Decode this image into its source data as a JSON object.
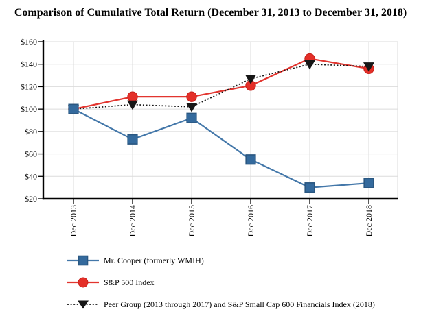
{
  "chart_data": {
    "type": "line",
    "title": "Comparison of Cumulative Total Return (December 31, 2013 to December 31, 2018)",
    "categories": [
      "Dec 2013",
      "Dec 2014",
      "Dec 2015",
      "Dec 2016",
      "Dec 2017",
      "Dec 2018"
    ],
    "series": [
      {
        "name": "Mr. Cooper (formerly WMIH)",
        "marker": "square",
        "line_style": "solid",
        "color": "#4377A9",
        "marker_fill": "#346A9D",
        "marker_stroke": "#2A5781",
        "values": [
          100,
          73,
          92,
          55,
          30,
          34
        ]
      },
      {
        "name": "S&P 500 Index",
        "marker": "circle",
        "line_style": "solid",
        "color": "#E2352F",
        "marker_fill": "#E42F28",
        "marker_stroke": "#C6211B",
        "values": [
          100,
          111,
          111,
          121,
          145,
          136
        ]
      },
      {
        "name": "Peer Group (2013 through 2017) and S&P Small Cap 600 Financials Index (2018)",
        "marker": "triangle-down",
        "line_style": "dotted",
        "color": "#161616",
        "marker_fill": "#161616",
        "marker_stroke": "#161616",
        "values": [
          100,
          104,
          102,
          127,
          140,
          138
        ]
      }
    ],
    "xlabel": "",
    "ylabel": "",
    "ylim": [
      20,
      160
    ],
    "y_ticks": [
      {
        "value": 20,
        "label": "$20"
      },
      {
        "value": 40,
        "label": "$40"
      },
      {
        "value": 60,
        "label": "$60"
      },
      {
        "value": 80,
        "label": "$80"
      },
      {
        "value": 100,
        "label": "$100"
      },
      {
        "value": 120,
        "label": "$120"
      },
      {
        "value": 140,
        "label": "$140"
      },
      {
        "value": 160,
        "label": "$160"
      }
    ],
    "grid": true,
    "grid_color": "#DBDBDB",
    "axis_color": "#000000",
    "legend_position": "bottom-left"
  }
}
